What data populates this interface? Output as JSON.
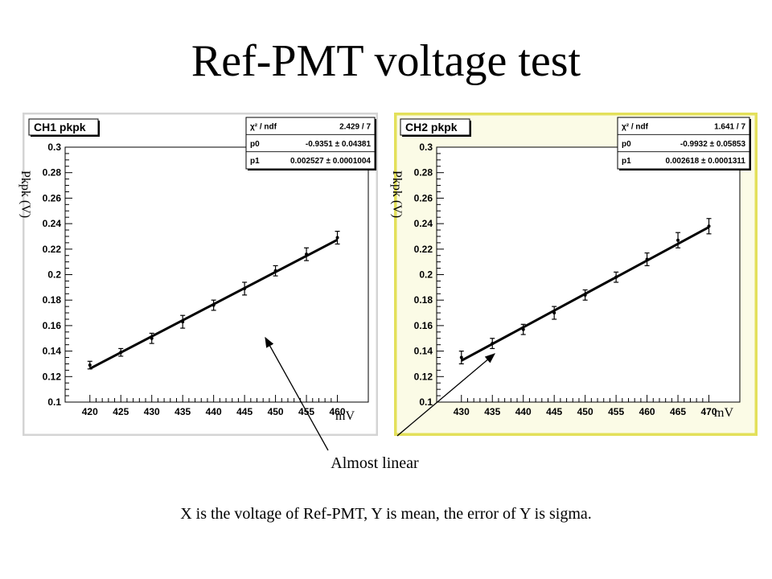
{
  "slide": {
    "title": "Ref-PMT voltage test",
    "annotation": "Almost linear",
    "caption": "X is the voltage of Ref-PMT, Y is mean, the error of Y is sigma."
  },
  "chart_data": [
    {
      "type": "scatter",
      "title": "CH1 pkpk",
      "xlabel": "mV",
      "ylabel": "Pkpk (V)",
      "xlim": [
        416,
        465
      ],
      "ylim": [
        0.1,
        0.3
      ],
      "xticks": [
        420,
        425,
        430,
        435,
        440,
        445,
        450,
        455,
        460
      ],
      "yticks": [
        0.1,
        0.12,
        0.14,
        0.16,
        0.18,
        0.2,
        0.22,
        0.24,
        0.26,
        0.28,
        0.3
      ],
      "grid": false,
      "x": [
        420,
        425,
        430,
        435,
        440,
        445,
        450,
        455,
        460
      ],
      "y": [
        0.129,
        0.139,
        0.15,
        0.163,
        0.176,
        0.189,
        0.203,
        0.216,
        0.229
      ],
      "yerr": [
        0.003,
        0.003,
        0.004,
        0.005,
        0.004,
        0.005,
        0.004,
        0.005,
        0.005
      ],
      "fit": {
        "p0": -0.9351,
        "p1": 0.002527
      },
      "stats": {
        "rows": [
          {
            "label": "χ² / ndf",
            "value": "2.429 / 7"
          },
          {
            "label": "p0",
            "value": "-0.9351 ± 0.04381"
          },
          {
            "label": "p1",
            "value": "0.002527 ± 0.0001004"
          }
        ]
      },
      "frame_color": "#d4d4d4",
      "panel_bg": "#ffffff"
    },
    {
      "type": "scatter",
      "title": "CH2 pkpk",
      "xlabel": "mV",
      "ylabel": "Pkpk (V)",
      "xlim": [
        426,
        475
      ],
      "ylim": [
        0.1,
        0.3
      ],
      "xticks": [
        430,
        435,
        440,
        445,
        450,
        455,
        460,
        465,
        470
      ],
      "yticks": [
        0.1,
        0.12,
        0.14,
        0.16,
        0.18,
        0.2,
        0.22,
        0.24,
        0.26,
        0.28,
        0.3
      ],
      "grid": false,
      "x": [
        430,
        435,
        440,
        445,
        450,
        455,
        460,
        465,
        470
      ],
      "y": [
        0.135,
        0.146,
        0.157,
        0.17,
        0.184,
        0.198,
        0.212,
        0.227,
        0.238
      ],
      "yerr": [
        0.005,
        0.004,
        0.004,
        0.005,
        0.004,
        0.004,
        0.005,
        0.006,
        0.006
      ],
      "fit": {
        "p0": -0.9932,
        "p1": 0.002618
      },
      "stats": {
        "rows": [
          {
            "label": "χ² / ndf",
            "value": "1.641 / 7"
          },
          {
            "label": "p0",
            "value": "-0.9932 ± 0.05853"
          },
          {
            "label": "p1",
            "value": "0.002618 ± 0.0001311"
          }
        ]
      },
      "frame_color": "#e3e05a",
      "panel_bg": "#fbfbe6"
    }
  ]
}
